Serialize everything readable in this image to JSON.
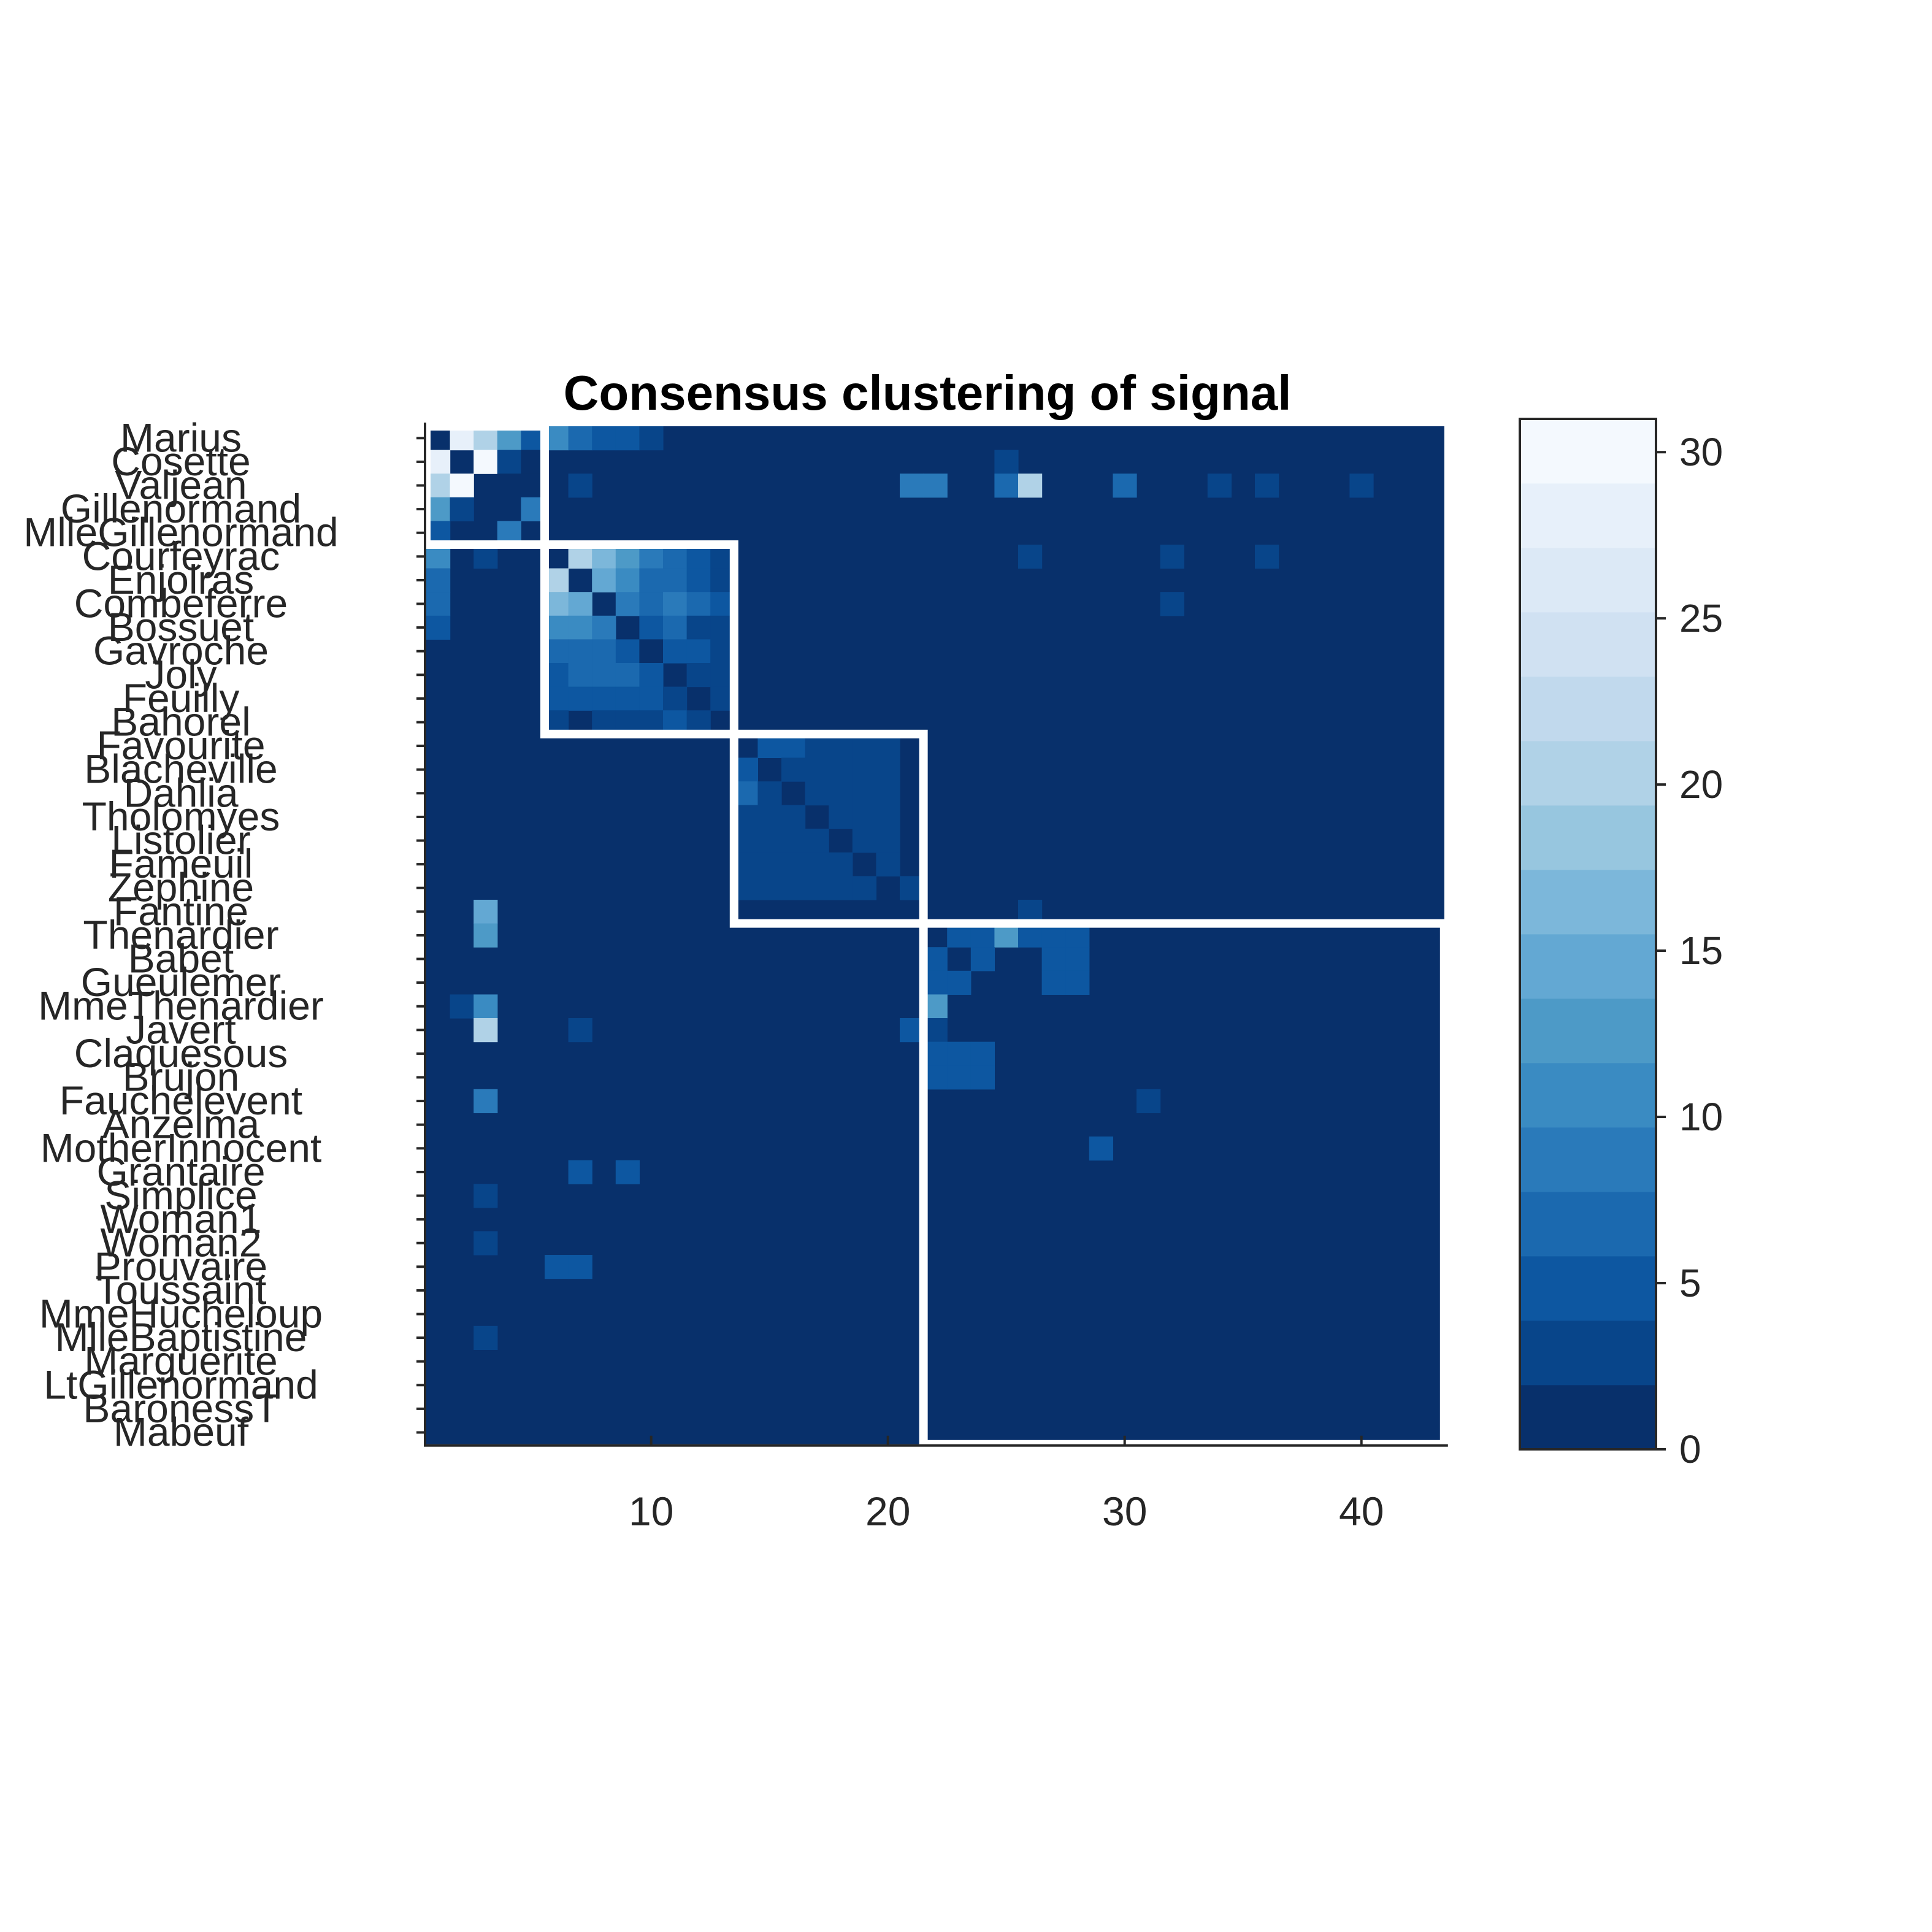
{
  "chart_data": {
    "type": "heatmap",
    "title": "Consensus clustering of signal",
    "xlabel": "",
    "ylabel": "",
    "row_labels": [
      "Marius",
      "Cosette",
      "Valjean",
      "Gillenormand",
      "MlleGillenormand",
      "Courfeyrac",
      "Enjolras",
      "Combeferre",
      "Bossuet",
      "Gavroche",
      "Joly",
      "Feuilly",
      "Bahorel",
      "Favourite",
      "Blacheville",
      "Dahlia",
      "Tholomyes",
      "Listolier",
      "Fameuil",
      "Zephine",
      "Fantine",
      "Thenardier",
      "Babet",
      "Gueulemer",
      "MmeThenardier",
      "Javert",
      "Claquesous",
      "Brujon",
      "Fauchelevent",
      "Anzelma",
      "MotherInnocent",
      "Grantaire",
      "Simplice",
      "Woman1",
      "Woman2",
      "Prouvaire",
      "Toussaint",
      "MmeHucheloup",
      "MlleBaptistine",
      "Marguerite",
      "LtGillenormand",
      "BaronessT",
      "Mabeuf"
    ],
    "x_ticks": [
      10,
      20,
      30,
      40
    ],
    "x_range": [
      1,
      43
    ],
    "color_scale": {
      "min": 0,
      "max": 31,
      "levels": 16,
      "ticks": [
        0,
        5,
        10,
        15,
        20,
        25,
        30
      ]
    },
    "colormap": [
      "#08306b",
      "#08458a",
      "#0d57a1",
      "#1b69af",
      "#2a7aba",
      "#3a8bc2",
      "#4d9ac7",
      "#63a8d3",
      "#7cb7da",
      "#97c6df",
      "#b0d2e7",
      "#c1d9ed",
      "#d0e1f2",
      "#dce9f6",
      "#e7f0fa",
      "#f4f9fe"
    ],
    "background_value": 0,
    "cells": [
      [
        1,
        2,
        28
      ],
      [
        1,
        3,
        20
      ],
      [
        1,
        4,
        12
      ],
      [
        1,
        5,
        5
      ],
      [
        1,
        6,
        10
      ],
      [
        1,
        7,
        7
      ],
      [
        1,
        8,
        4
      ],
      [
        1,
        9,
        4
      ],
      [
        1,
        10,
        3
      ],
      [
        2,
        1,
        28
      ],
      [
        2,
        3,
        30
      ],
      [
        2,
        4,
        3
      ],
      [
        2,
        5,
        1
      ],
      [
        2,
        25,
        2
      ],
      [
        3,
        1,
        20
      ],
      [
        3,
        2,
        30
      ],
      [
        3,
        4,
        1
      ],
      [
        3,
        7,
        3
      ],
      [
        3,
        21,
        8
      ],
      [
        3,
        22,
        9
      ],
      [
        3,
        25,
        7
      ],
      [
        3,
        26,
        21
      ],
      [
        3,
        30,
        7
      ],
      [
        3,
        34,
        3
      ],
      [
        3,
        36,
        3
      ],
      [
        3,
        40,
        3
      ],
      [
        4,
        1,
        12
      ],
      [
        4,
        2,
        3
      ],
      [
        4,
        5,
        9
      ],
      [
        5,
        1,
        4
      ],
      [
        5,
        4,
        9
      ],
      [
        6,
        1,
        11
      ],
      [
        6,
        3,
        3
      ],
      [
        6,
        7,
        20
      ],
      [
        6,
        8,
        17
      ],
      [
        6,
        9,
        12
      ],
      [
        6,
        10,
        9
      ],
      [
        6,
        11,
        6
      ],
      [
        6,
        12,
        5
      ],
      [
        6,
        13,
        3
      ],
      [
        6,
        26,
        3
      ],
      [
        6,
        32,
        3
      ],
      [
        6,
        36,
        3
      ],
      [
        7,
        1,
        6
      ],
      [
        7,
        6,
        20
      ],
      [
        7,
        8,
        15
      ],
      [
        7,
        9,
        10
      ],
      [
        7,
        10,
        7
      ],
      [
        7,
        11,
        6
      ],
      [
        7,
        12,
        4
      ],
      [
        7,
        13,
        2
      ],
      [
        8,
        1,
        6
      ],
      [
        8,
        6,
        16
      ],
      [
        8,
        7,
        15
      ],
      [
        8,
        9,
        9
      ],
      [
        8,
        10,
        6
      ],
      [
        8,
        11,
        9
      ],
      [
        8,
        12,
        6
      ],
      [
        8,
        13,
        4
      ],
      [
        8,
        32,
        3
      ],
      [
        9,
        1,
        5
      ],
      [
        9,
        6,
        10
      ],
      [
        9,
        7,
        10
      ],
      [
        9,
        8,
        9
      ],
      [
        9,
        10,
        5
      ],
      [
        9,
        11,
        6
      ],
      [
        9,
        12,
        3
      ],
      [
        9,
        13,
        2
      ],
      [
        10,
        6,
        7
      ],
      [
        10,
        7,
        7
      ],
      [
        10,
        8,
        6
      ],
      [
        10,
        9,
        5
      ],
      [
        10,
        10,
        1
      ],
      [
        10,
        11,
        4
      ],
      [
        10,
        12,
        5
      ],
      [
        10,
        13,
        2
      ],
      [
        11,
        6,
        5
      ],
      [
        11,
        7,
        6
      ],
      [
        11,
        8,
        7
      ],
      [
        11,
        9,
        6
      ],
      [
        11,
        10,
        4
      ],
      [
        11,
        12,
        3
      ],
      [
        11,
        13,
        2
      ],
      [
        12,
        6,
        4
      ],
      [
        12,
        7,
        4
      ],
      [
        12,
        8,
        5
      ],
      [
        12,
        9,
        4
      ],
      [
        12,
        10,
        5
      ],
      [
        12,
        11,
        3
      ],
      [
        12,
        13,
        2
      ],
      [
        13,
        6,
        3
      ],
      [
        13,
        8,
        3
      ],
      [
        13,
        9,
        2
      ],
      [
        13,
        10,
        3
      ],
      [
        13,
        11,
        4
      ],
      [
        13,
        12,
        3
      ],
      [
        14,
        15,
        4
      ],
      [
        14,
        16,
        4
      ],
      [
        14,
        17,
        3
      ],
      [
        14,
        18,
        3
      ],
      [
        14,
        19,
        3
      ],
      [
        14,
        20,
        3
      ],
      [
        15,
        14,
        4
      ],
      [
        15,
        16,
        3
      ],
      [
        15,
        17,
        3
      ],
      [
        15,
        18,
        3
      ],
      [
        15,
        19,
        3
      ],
      [
        15,
        20,
        3
      ],
      [
        16,
        14,
        6
      ],
      [
        16,
        15,
        3
      ],
      [
        16,
        17,
        3
      ],
      [
        16,
        18,
        3
      ],
      [
        16,
        19,
        3
      ],
      [
        16,
        20,
        3
      ],
      [
        17,
        14,
        3
      ],
      [
        17,
        15,
        3
      ],
      [
        17,
        16,
        3
      ],
      [
        17,
        18,
        3
      ],
      [
        17,
        19,
        3
      ],
      [
        17,
        20,
        3
      ],
      [
        18,
        14,
        3
      ],
      [
        18,
        15,
        3
      ],
      [
        18,
        16,
        3
      ],
      [
        18,
        17,
        3
      ],
      [
        18,
        19,
        3
      ],
      [
        18,
        20,
        3
      ],
      [
        19,
        14,
        3
      ],
      [
        19,
        15,
        3
      ],
      [
        19,
        16,
        3
      ],
      [
        19,
        17,
        3
      ],
      [
        19,
        18,
        3
      ],
      [
        19,
        20,
        3
      ],
      [
        20,
        14,
        3
      ],
      [
        20,
        15,
        3
      ],
      [
        20,
        16,
        3
      ],
      [
        20,
        17,
        3
      ],
      [
        20,
        18,
        3
      ],
      [
        20,
        19,
        3
      ],
      [
        20,
        21,
        3
      ],
      [
        21,
        3,
        14
      ],
      [
        21,
        26,
        3
      ],
      [
        22,
        3,
        13
      ],
      [
        22,
        23,
        5
      ],
      [
        22,
        24,
        5
      ],
      [
        22,
        25,
        13
      ],
      [
        22,
        26,
        5
      ],
      [
        22,
        27,
        4
      ],
      [
        22,
        28,
        4
      ],
      [
        23,
        22,
        4
      ],
      [
        23,
        24,
        5
      ],
      [
        23,
        27,
        4
      ],
      [
        23,
        28,
        4
      ],
      [
        24,
        22,
        4
      ],
      [
        24,
        23,
        4
      ],
      [
        24,
        27,
        4
      ],
      [
        24,
        28,
        4
      ],
      [
        25,
        2,
        3
      ],
      [
        25,
        3,
        11
      ],
      [
        25,
        22,
        13
      ],
      [
        26,
        3,
        20
      ],
      [
        26,
        7,
        3
      ],
      [
        26,
        21,
        5
      ],
      [
        26,
        22,
        3
      ],
      [
        27,
        22,
        4
      ],
      [
        27,
        23,
        4
      ],
      [
        27,
        24,
        4
      ],
      [
        28,
        22,
        4
      ],
      [
        28,
        23,
        4
      ],
      [
        28,
        24,
        4
      ],
      [
        29,
        3,
        8
      ],
      [
        29,
        31,
        3
      ],
      [
        31,
        29,
        4
      ],
      [
        32,
        7,
        4
      ],
      [
        32,
        9,
        4
      ],
      [
        33,
        3,
        3
      ],
      [
        35,
        3,
        3
      ],
      [
        36,
        6,
        4
      ],
      [
        36,
        7,
        4
      ],
      [
        39,
        3,
        3
      ]
    ],
    "clusters": [
      [
        1,
        5
      ],
      [
        6,
        13
      ],
      [
        14,
        21
      ],
      [
        22,
        43
      ]
    ]
  }
}
